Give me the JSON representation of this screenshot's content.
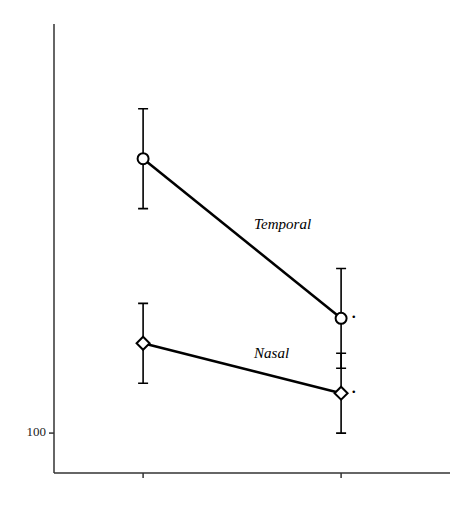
{
  "chart_data": {
    "type": "line",
    "categories": [
      null,
      null
    ],
    "series": [
      {
        "name": "Temporal",
        "color": "#000000",
        "marker": "circle",
        "line_style": "solid",
        "values": [
          155,
          123
        ],
        "errors": [
          10,
          10
        ]
      },
      {
        "name": "Nasal",
        "color": "#000000",
        "marker": "diamond",
        "line_style": "solid",
        "values": [
          118,
          108
        ],
        "errors": [
          8,
          8
        ]
      }
    ],
    "annotations": [
      ".",
      "."
    ],
    "ylim": [
      92,
      182
    ],
    "yticks": [
      100
    ],
    "grid": false,
    "tick_labels": "y"
  }
}
